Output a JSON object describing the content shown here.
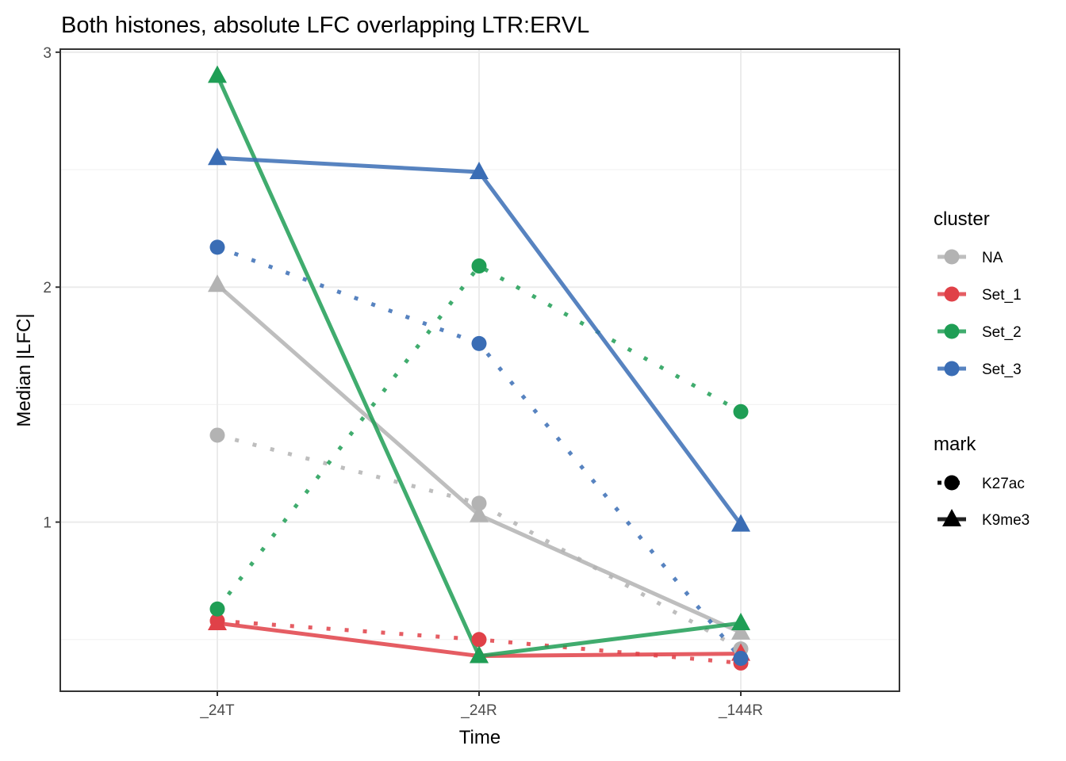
{
  "chart_data": {
    "type": "line",
    "title": "Both histones, absolute LFC overlapping LTR:ERVL",
    "xlabel": "Time",
    "ylabel": "Median |LFC|",
    "categories": [
      "_24T",
      "_24R",
      "_144R"
    ],
    "yticks": [
      1,
      2,
      3
    ],
    "ylim": [
      0.28,
      3.013
    ],
    "grid": true,
    "legend_position": "right",
    "legends": [
      {
        "title": "cluster",
        "entries": [
          {
            "label": "NA",
            "color": "#b3b3b3"
          },
          {
            "label": "Set_1",
            "color": "#e04148"
          },
          {
            "label": "Set_2",
            "color": "#1f9e55"
          },
          {
            "label": "Set_3",
            "color": "#3a6db5"
          }
        ]
      },
      {
        "title": "mark",
        "entries": [
          {
            "label": "K27ac",
            "linetype": "dotted",
            "shape": "circle"
          },
          {
            "label": "K9me3",
            "linetype": "solid",
            "shape": "triangle"
          }
        ]
      }
    ],
    "series": [
      {
        "name": "NA K27ac",
        "cluster": "NA",
        "mark": "K27ac",
        "color": "#b3b3b3",
        "values": [
          1.37,
          1.08,
          0.46
        ]
      },
      {
        "name": "NA K9me3",
        "cluster": "NA",
        "mark": "K9me3",
        "color": "#b3b3b3",
        "values": [
          2.01,
          1.03,
          0.53
        ]
      },
      {
        "name": "Set_1 K27ac",
        "cluster": "Set_1",
        "mark": "K27ac",
        "color": "#e04148",
        "values": [
          0.58,
          0.5,
          0.4
        ]
      },
      {
        "name": "Set_1 K9me3",
        "cluster": "Set_1",
        "mark": "K9me3",
        "color": "#e04148",
        "values": [
          0.57,
          0.43,
          0.44
        ]
      },
      {
        "name": "Set_2 K27ac",
        "cluster": "Set_2",
        "mark": "K27ac",
        "color": "#1f9e55",
        "values": [
          0.63,
          2.09,
          1.47
        ]
      },
      {
        "name": "Set_2 K9me3",
        "cluster": "Set_2",
        "mark": "K9me3",
        "color": "#1f9e55",
        "values": [
          2.9,
          0.43,
          0.57
        ]
      },
      {
        "name": "Set_3 K27ac",
        "cluster": "Set_3",
        "mark": "K27ac",
        "color": "#3a6db5",
        "values": [
          2.17,
          1.76,
          0.42
        ]
      },
      {
        "name": "Set_3 K9me3",
        "cluster": "Set_3",
        "mark": "K9me3",
        "color": "#3a6db5",
        "values": [
          2.55,
          2.49,
          0.99
        ]
      }
    ]
  }
}
